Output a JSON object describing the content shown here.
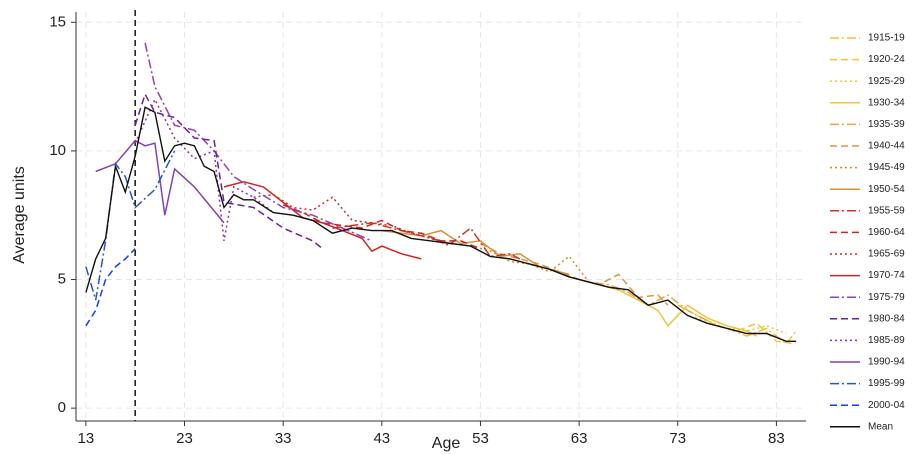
{
  "chart_data": {
    "type": "line",
    "x_label": "Age",
    "y_label": "Average units",
    "xlim": [
      12,
      86
    ],
    "ylim": [
      -0.5,
      15.4
    ],
    "xticks": [
      13,
      23,
      33,
      43,
      53,
      63,
      73,
      83
    ],
    "yticks": [
      0,
      5,
      10,
      15
    ],
    "grid": true,
    "vline": 18,
    "legend": "right",
    "series": [
      {
        "name": "1915-19",
        "color": "#f2c12e",
        "style": "dashdot",
        "x": [
          78,
          80,
          82,
          84,
          85
        ],
        "values": [
          3.1,
          2.8,
          3.1,
          2.5,
          3.0
        ]
      },
      {
        "name": "1920-24",
        "color": "#efc534",
        "style": "dashed",
        "x": [
          73,
          75,
          77,
          79,
          81,
          83,
          85
        ],
        "values": [
          4.0,
          3.6,
          3.2,
          3.0,
          3.3,
          2.6,
          2.5
        ]
      },
      {
        "name": "1925-29",
        "color": "#e8c82a",
        "style": "dotted",
        "x": [
          68,
          70,
          72,
          74,
          76,
          78,
          80,
          82,
          84
        ],
        "values": [
          4.4,
          4.0,
          4.2,
          3.6,
          3.4,
          3.1,
          3.0,
          3.2,
          2.9
        ]
      },
      {
        "name": "1930-34",
        "color": "#f0c43c",
        "style": "solid",
        "x": [
          63,
          65,
          67,
          69,
          71,
          72,
          74,
          76,
          78,
          80,
          81
        ],
        "values": [
          5.0,
          4.8,
          4.6,
          4.2,
          3.8,
          3.2,
          4.0,
          3.5,
          3.2,
          3.0,
          2.8
        ]
      },
      {
        "name": "1935-39",
        "color": "#e8a448",
        "style": "dashdot",
        "x": [
          58,
          60,
          62,
          64,
          66,
          68,
          70,
          72,
          74,
          76
        ],
        "values": [
          5.6,
          5.4,
          5.1,
          4.9,
          4.8,
          4.5,
          4.0,
          4.4,
          3.8,
          3.4
        ]
      },
      {
        "name": "1940-44",
        "color": "#e0943a",
        "style": "dashed",
        "x": [
          53,
          55,
          57,
          59,
          61,
          63,
          65,
          67,
          69,
          71,
          72
        ],
        "values": [
          6.4,
          6.0,
          5.8,
          5.6,
          5.3,
          5.0,
          4.8,
          5.2,
          4.3,
          4.4,
          4.0
        ]
      },
      {
        "name": "1945-49",
        "color": "#d88a24",
        "style": "dotted",
        "x": [
          48,
          50,
          52,
          54,
          56,
          58,
          60,
          62,
          64,
          66,
          67
        ],
        "values": [
          6.6,
          6.4,
          6.3,
          6.1,
          5.7,
          5.6,
          5.3,
          5.9,
          4.9,
          4.7,
          4.6
        ]
      },
      {
        "name": "1950-54",
        "color": "#d8903a",
        "style": "solid",
        "x": [
          43,
          45,
          47,
          49,
          51,
          53,
          55,
          57,
          59,
          61,
          62
        ],
        "values": [
          6.9,
          6.8,
          6.7,
          6.9,
          6.4,
          6.5,
          5.9,
          6.0,
          5.5,
          5.3,
          5.2
        ]
      },
      {
        "name": "1955-59",
        "color": "#d03424",
        "style": "dashdot",
        "x": [
          38,
          40,
          42,
          44,
          46,
          48,
          50,
          52,
          54,
          56,
          57
        ],
        "values": [
          7.0,
          7.1,
          7.2,
          7.0,
          6.8,
          6.6,
          6.4,
          7.0,
          5.9,
          6.0,
          5.8
        ]
      },
      {
        "name": "1960-64",
        "color": "#cc2420",
        "style": "dashed",
        "x": [
          33,
          35,
          37,
          39,
          41,
          43,
          45,
          47,
          49,
          51,
          53
        ],
        "values": [
          7.9,
          7.6,
          7.2,
          7.1,
          7.0,
          7.3,
          6.9,
          6.8,
          6.5,
          6.5,
          6.2
        ]
      },
      {
        "name": "1965-69",
        "color": "#d02a2a",
        "style": "dotted",
        "x": [
          30,
          32,
          34,
          36,
          38,
          40,
          42,
          44,
          46,
          48,
          50
        ],
        "values": [
          8.2,
          8.3,
          7.8,
          7.7,
          8.2,
          7.3,
          7.2,
          7.1,
          6.8,
          6.6,
          6.3
        ]
      },
      {
        "name": "1970-74",
        "color": "#d22420",
        "style": "solid",
        "x": [
          27,
          29,
          31,
          33,
          35,
          37,
          39,
          41,
          42,
          43,
          45,
          47
        ],
        "values": [
          8.6,
          8.8,
          8.6,
          8.0,
          7.4,
          7.2,
          6.9,
          6.6,
          6.1,
          6.3,
          6.0,
          5.8
        ]
      },
      {
        "name": "1975-79",
        "color": "#9440b4",
        "style": "dashdot",
        "x": [
          19,
          20,
          22,
          24,
          26,
          28,
          30,
          33,
          36,
          39,
          42
        ],
        "values": [
          14.2,
          12.5,
          11.0,
          10.8,
          10.0,
          9.0,
          8.5,
          7.8,
          7.5,
          7.0,
          6.5
        ]
      },
      {
        "name": "1980-84",
        "color": "#6e1e9e",
        "style": "dashed",
        "x": [
          18,
          19,
          20,
          22,
          24,
          26,
          27,
          30,
          33,
          36,
          37
        ],
        "values": [
          11.0,
          12.2,
          11.5,
          11.3,
          10.5,
          10.4,
          8.0,
          7.8,
          7.0,
          6.5,
          6.2
        ]
      },
      {
        "name": "1985-89",
        "color": "#8a30b4",
        "style": "dotted",
        "x": [
          18,
          20,
          22,
          24,
          26,
          27,
          28,
          30,
          32
        ],
        "values": [
          10.3,
          12.0,
          10.5,
          9.7,
          10.0,
          6.5,
          8.6,
          8.2,
          7.6
        ]
      },
      {
        "name": "1990-94",
        "color": "#8442b2",
        "style": "solid",
        "x": [
          14,
          16,
          18,
          19,
          20,
          21,
          22,
          24,
          27
        ],
        "values": [
          9.2,
          9.5,
          10.4,
          10.2,
          10.3,
          7.5,
          9.3,
          8.6,
          7.2
        ]
      },
      {
        "name": "1995-99",
        "color": "#2454d4",
        "style": "dashdot",
        "x": [
          13,
          14,
          15,
          16,
          17,
          18,
          20,
          22
        ],
        "values": [
          5.5,
          4.2,
          6.5,
          9.5,
          9.0,
          7.8,
          8.5,
          10.0
        ]
      },
      {
        "name": "2000-04",
        "color": "#1040e4",
        "style": "dashed",
        "x": [
          13,
          14,
          15,
          16,
          17,
          18
        ],
        "values": [
          3.2,
          3.8,
          5.0,
          5.5,
          5.8,
          6.2
        ]
      },
      {
        "name": "Mean",
        "color": "#111111",
        "style": "solid",
        "x": [
          13,
          14,
          15,
          16,
          17,
          18,
          19,
          20,
          21,
          22,
          23,
          24,
          25,
          26,
          27,
          28,
          29,
          30,
          32,
          34,
          36,
          38,
          40,
          42,
          44,
          46,
          48,
          50,
          52,
          54,
          56,
          58,
          60,
          62,
          64,
          66,
          68,
          70,
          72,
          74,
          76,
          78,
          80,
          82,
          84,
          85
        ],
        "values": [
          4.5,
          5.8,
          6.6,
          9.4,
          8.4,
          9.8,
          11.7,
          11.5,
          9.6,
          10.2,
          10.3,
          10.2,
          9.4,
          9.2,
          7.8,
          8.3,
          8.1,
          8.1,
          7.6,
          7.5,
          7.3,
          6.8,
          7.0,
          6.9,
          6.9,
          6.6,
          6.5,
          6.4,
          6.3,
          5.9,
          5.8,
          5.6,
          5.4,
          5.1,
          4.9,
          4.7,
          4.6,
          4.0,
          4.2,
          3.6,
          3.3,
          3.1,
          2.9,
          2.9,
          2.6,
          2.6
        ]
      }
    ]
  }
}
